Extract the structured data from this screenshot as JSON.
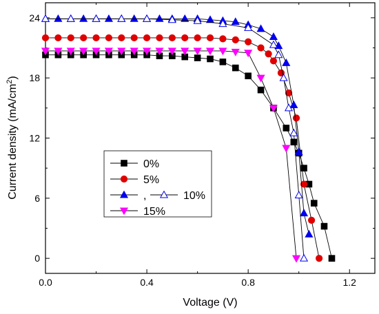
{
  "chart_data": {
    "type": "line",
    "xlabel": "Voltage (V)",
    "ylabel_main": "Current density (mA/cm",
    "ylabel_sup": "2",
    "ylabel_close": ")",
    "xlim": [
      0,
      1.3
    ],
    "ylim": [
      -1.5,
      25.5
    ],
    "xticks": [
      0.0,
      0.4,
      0.8,
      1.2
    ],
    "xtick_labels": [
      "0.0",
      "0.4",
      "0.8",
      "1.2"
    ],
    "yticks": [
      0,
      6,
      12,
      18,
      24
    ],
    "ytick_labels": [
      "0",
      "6",
      "12",
      "18",
      "24"
    ],
    "grid": false,
    "legend_position": "center-left",
    "legend_labels": [
      "0%",
      "5%",
      ",",
      "10%",
      "15%"
    ],
    "series": [
      {
        "name": "0%",
        "marker": "square",
        "color": "#000000",
        "filled": true,
        "x": [
          0,
          0.05,
          0.1,
          0.15,
          0.2,
          0.25,
          0.3,
          0.35,
          0.4,
          0.45,
          0.5,
          0.55,
          0.6,
          0.65,
          0.7,
          0.75,
          0.8,
          0.85,
          0.9,
          0.95,
          0.98,
          1.0,
          1.02,
          1.04,
          1.06,
          1.1,
          1.13
        ],
        "y": [
          20.3,
          20.3,
          20.3,
          20.3,
          20.3,
          20.3,
          20.3,
          20.3,
          20.3,
          20.2,
          20.2,
          20.1,
          20.0,
          19.9,
          19.6,
          19.0,
          18.2,
          16.8,
          15.0,
          13.0,
          11.6,
          10.5,
          9.0,
          7.4,
          5.5,
          3.2,
          0.0
        ]
      },
      {
        "name": "5%",
        "marker": "circle",
        "color": "#e00000",
        "filled": true,
        "x": [
          0,
          0.05,
          0.1,
          0.15,
          0.2,
          0.25,
          0.3,
          0.35,
          0.4,
          0.45,
          0.5,
          0.55,
          0.6,
          0.65,
          0.7,
          0.75,
          0.8,
          0.85,
          0.88,
          0.9,
          0.93,
          0.96,
          0.99,
          1.02,
          1.05,
          1.08
        ],
        "y": [
          22.0,
          22.0,
          22.0,
          22.0,
          22.0,
          22.0,
          22.0,
          22.0,
          22.0,
          22.0,
          22.0,
          22.0,
          22.0,
          22.0,
          21.9,
          21.8,
          21.6,
          21.0,
          20.4,
          19.7,
          18.5,
          16.5,
          14.0,
          7.4,
          3.8,
          0.0
        ]
      },
      {
        "name": "",
        "marker": "triangle-up",
        "color": "#0000ee",
        "filled": true,
        "x": [
          0,
          0.05,
          0.1,
          0.15,
          0.2,
          0.25,
          0.3,
          0.35,
          0.4,
          0.45,
          0.5,
          0.55,
          0.6,
          0.65,
          0.7,
          0.75,
          0.8,
          0.85,
          0.9,
          0.92,
          0.95,
          0.98,
          1.0,
          1.02,
          1.04
        ],
        "y": [
          23.9,
          23.9,
          23.9,
          23.9,
          23.9,
          23.9,
          23.9,
          23.9,
          23.9,
          23.9,
          23.9,
          23.9,
          23.9,
          23.8,
          23.7,
          23.6,
          23.3,
          22.9,
          22.1,
          21.2,
          19.5,
          15.3,
          10.6,
          4.5,
          2.4
        ]
      },
      {
        "name": "10%",
        "marker": "triangle-up",
        "color": "#0000ee",
        "filled": false,
        "x": [
          0,
          0.1,
          0.2,
          0.3,
          0.4,
          0.5,
          0.6,
          0.7,
          0.8,
          0.9,
          0.92,
          0.94,
          0.96,
          0.98,
          1.0,
          1.02
        ],
        "y": [
          23.9,
          23.9,
          23.9,
          23.9,
          23.9,
          23.8,
          23.7,
          23.4,
          23.0,
          21.3,
          20.3,
          18.0,
          15.0,
          12.5,
          6.3,
          0.0
        ]
      },
      {
        "name": "15%",
        "marker": "triangle-down",
        "color": "#ff00ff",
        "filled": true,
        "x": [
          0,
          0.05,
          0.1,
          0.15,
          0.2,
          0.25,
          0.3,
          0.35,
          0.4,
          0.45,
          0.5,
          0.55,
          0.6,
          0.65,
          0.7,
          0.75,
          0.8,
          0.85,
          0.9,
          0.95,
          0.99
        ],
        "y": [
          20.7,
          20.7,
          20.7,
          20.7,
          20.7,
          20.7,
          20.7,
          20.7,
          20.7,
          20.7,
          20.7,
          20.7,
          20.7,
          20.7,
          20.7,
          20.6,
          20.5,
          18.0,
          15.0,
          11.0,
          0.0
        ]
      }
    ]
  }
}
